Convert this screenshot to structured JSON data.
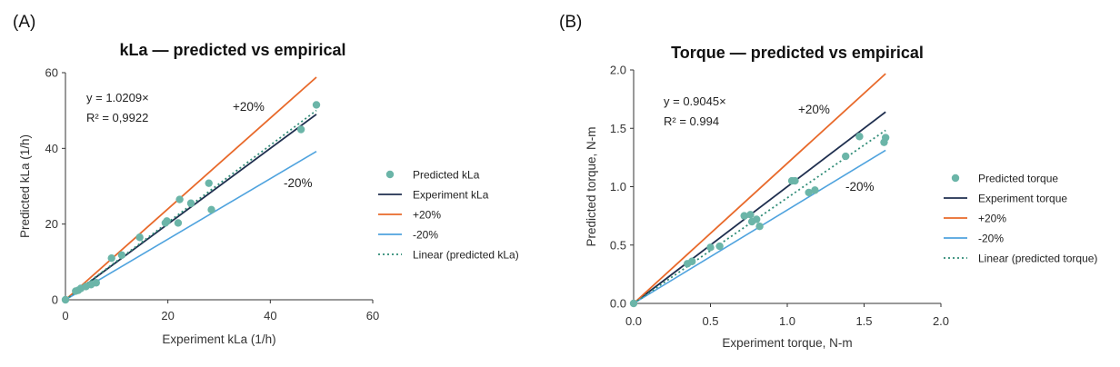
{
  "panels": [
    {
      "label": "(A)",
      "title": "kLa — predicted vs empirical",
      "xlabel": "Experiment kLa (1/h)",
      "ylabel": "Predicted kLa (1/h)",
      "legend": [
        "Predicted kLa",
        "Experiment kLa",
        "+20%",
        "-20%",
        "Linear (predicted kLa)"
      ],
      "annotations": {
        "equation": "y = 1.0209×",
        "r2": "R² = 0,9922",
        "plus": "+20%",
        "minus": "-20%"
      }
    },
    {
      "label": "(B)",
      "title": "Torque — predicted vs empirical",
      "xlabel": "Experiment torque, N-m",
      "ylabel": "Predicted torque, N-m",
      "legend": [
        "Predicted torque",
        "Experiment torque",
        "+20%",
        "-20%",
        "Linear (predicted torque)"
      ],
      "annotations": {
        "equation": "y = 0.9045×",
        "r2": "R² = 0.994",
        "plus": "+20%",
        "minus": "-20%"
      }
    }
  ],
  "colors": {
    "points": "#6bb5a8",
    "experiment": "#1f2f4f",
    "plus20": "#e8692a",
    "minus20": "#4fa3de",
    "linear": "#2e8b76",
    "axis": "#333333"
  },
  "chart_data": [
    {
      "type": "scatter",
      "title": "kLa — predicted vs empirical",
      "xlabel": "Experiment kLa (1/h)",
      "ylabel": "Predicted kLa (1/h)",
      "xlim": [
        0,
        60
      ],
      "ylim": [
        0,
        60
      ],
      "xticks": [
        0,
        20,
        40,
        60
      ],
      "yticks": [
        0,
        20,
        40,
        60
      ],
      "grid": false,
      "legend_position": "right",
      "series": [
        {
          "name": "Predicted kLa",
          "kind": "points",
          "x": [
            0,
            2,
            2.5,
            3,
            4,
            5,
            6,
            9,
            11,
            14.5,
            19.5,
            19.8,
            22,
            22.3,
            24.5,
            28,
            28.5,
            46,
            49
          ],
          "y": [
            0,
            2.3,
            2.5,
            3,
            3.5,
            4,
            4.5,
            11,
            11.8,
            16.5,
            20.3,
            20.8,
            20.3,
            26.5,
            25.5,
            30.8,
            23.8,
            45,
            51.5
          ]
        },
        {
          "name": "Experiment kLa",
          "kind": "line",
          "x": [
            0,
            49
          ],
          "y": [
            0,
            49
          ]
        },
        {
          "name": "+20%",
          "kind": "line",
          "x": [
            0,
            49
          ],
          "y": [
            0,
            58.8
          ]
        },
        {
          "name": "-20%",
          "kind": "line",
          "x": [
            0,
            49
          ],
          "y": [
            0,
            39.2
          ]
        },
        {
          "name": "Linear (predicted kLa)",
          "kind": "dotted-line",
          "x": [
            0,
            49
          ],
          "y": [
            0,
            50.02
          ]
        }
      ]
    },
    {
      "type": "scatter",
      "title": "Torque — predicted vs empirical",
      "xlabel": "Experiment torque, N-m",
      "ylabel": "Predicted torque, N-m",
      "xlim": [
        0,
        2.0
      ],
      "ylim": [
        0,
        2.0
      ],
      "xticks": [
        0,
        0.5,
        1.0,
        1.5,
        2.0
      ],
      "yticks": [
        0,
        0.5,
        1.0,
        1.5,
        2.0
      ],
      "grid": false,
      "legend_position": "right",
      "series": [
        {
          "name": "Predicted torque",
          "kind": "points",
          "x": [
            0,
            0.35,
            0.38,
            0.5,
            0.56,
            0.72,
            0.76,
            0.77,
            0.8,
            0.82,
            1.03,
            1.05,
            1.14,
            1.18,
            1.38,
            1.47,
            1.63,
            1.64
          ],
          "y": [
            0,
            0.34,
            0.36,
            0.48,
            0.49,
            0.75,
            0.76,
            0.7,
            0.72,
            0.66,
            1.05,
            1.05,
            0.95,
            0.97,
            1.26,
            1.43,
            1.38,
            1.42
          ]
        },
        {
          "name": "Experiment torque",
          "kind": "line",
          "x": [
            0,
            1.64
          ],
          "y": [
            0,
            1.64
          ]
        },
        {
          "name": "+20%",
          "kind": "line",
          "x": [
            0,
            1.64
          ],
          "y": [
            0,
            1.968
          ]
        },
        {
          "name": "-20%",
          "kind": "line",
          "x": [
            0,
            1.64
          ],
          "y": [
            0,
            1.312
          ]
        },
        {
          "name": "Linear (predicted torque)",
          "kind": "dotted-line",
          "x": [
            0,
            1.64
          ],
          "y": [
            0,
            1.483
          ]
        }
      ]
    }
  ]
}
